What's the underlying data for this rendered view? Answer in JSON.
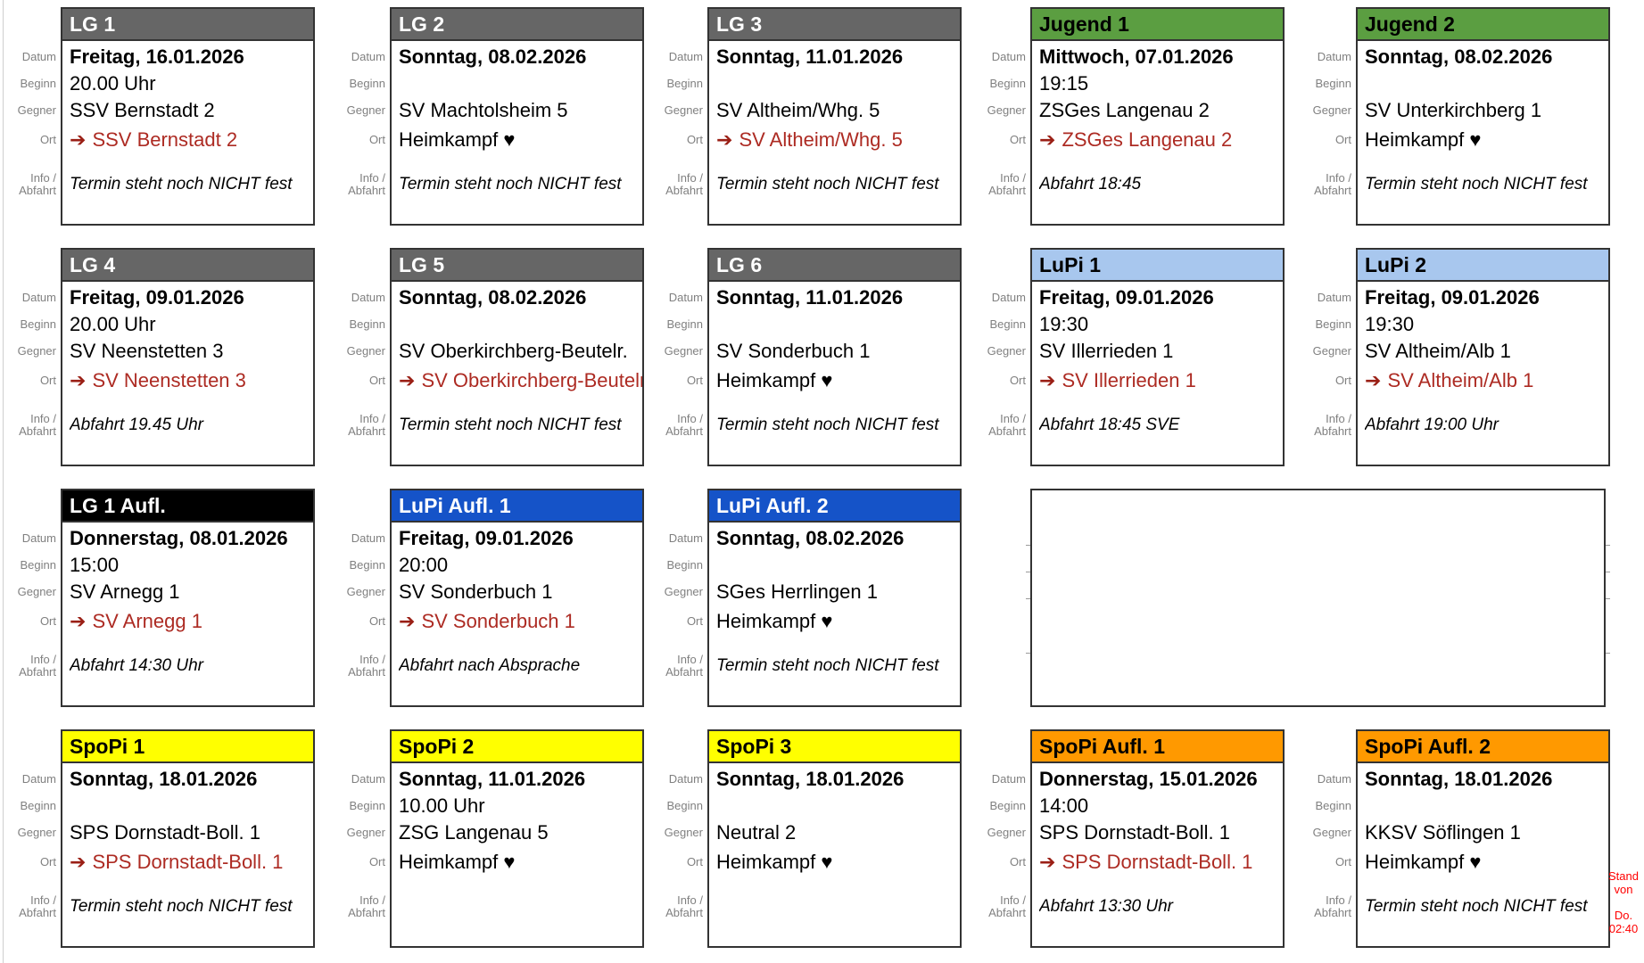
{
  "labels": {
    "datum": "Datum",
    "beginn": "Beginn",
    "gegner": "Gegner",
    "ort": "Ort",
    "info_line1": "Info /",
    "info_line2": "Abfahrt"
  },
  "icons": {
    "away_arrow": "➔",
    "home_heart": "♥"
  },
  "colors": {
    "lg_gray": "#666666",
    "jugend_green": "#5B9E41",
    "lupi_lightblue": "#A8C7EE",
    "lg_aufl_black": "#000000",
    "lupi_aufl_blue": "#1553C8",
    "spopi_yellow": "#FFFF00",
    "spopi_aufl_orange": "#FF9900",
    "away_text_red": "#AD2B23",
    "arrow_red": "#9A1F15",
    "label_gray": "#808080",
    "stand_note_red": "#FF0000"
  },
  "stand_note": {
    "line1": "Stand von",
    "line2": "Do. 02:40"
  },
  "cards": [
    {
      "row": 0,
      "col": 0,
      "title": "LG 1",
      "header_bg": "#666666",
      "header_fg": "#FFFFFF",
      "datum": "Freitag, 16.01.2026",
      "beginn": "20.00 Uhr",
      "gegner": "SSV Bernstadt 2",
      "ort": {
        "type": "away",
        "text": "SSV Bernstadt 2"
      },
      "info": "Termin steht noch NICHT fest"
    },
    {
      "row": 0,
      "col": 1,
      "title": "LG 2",
      "header_bg": "#666666",
      "header_fg": "#FFFFFF",
      "datum": "Sonntag, 08.02.2026",
      "beginn": "",
      "gegner": "SV Machtolsheim 5",
      "ort": {
        "type": "home",
        "text": "Heimkampf ♥"
      },
      "info": "Termin steht noch NICHT fest"
    },
    {
      "row": 0,
      "col": 2,
      "title": "LG 3",
      "header_bg": "#666666",
      "header_fg": "#FFFFFF",
      "datum": "Sonntag, 11.01.2026",
      "beginn": "",
      "gegner": "SV Altheim/Whg. 5",
      "ort": {
        "type": "away",
        "text": "SV Altheim/Whg. 5"
      },
      "info": "Termin steht noch NICHT fest"
    },
    {
      "row": 0,
      "col": 3,
      "title": "Jugend 1",
      "header_bg": "#5B9E41",
      "header_fg": "#000000",
      "datum": "Mittwoch, 07.01.2026",
      "beginn": "19:15",
      "gegner": "ZSGes Langenau 2",
      "ort": {
        "type": "away",
        "text": "ZSGes Langenau 2"
      },
      "info": "Abfahrt 18:45"
    },
    {
      "row": 0,
      "col": 4,
      "title": "Jugend 2",
      "header_bg": "#5B9E41",
      "header_fg": "#000000",
      "datum": "Sonntag, 08.02.2026",
      "beginn": "",
      "gegner": "SV Unterkirchberg 1",
      "ort": {
        "type": "home",
        "text": "Heimkampf ♥"
      },
      "info": "Termin steht noch NICHT fest"
    },
    {
      "row": 1,
      "col": 0,
      "title": "LG 4",
      "header_bg": "#666666",
      "header_fg": "#FFFFFF",
      "datum": "Freitag, 09.01.2026",
      "beginn": "20.00 Uhr",
      "gegner": "SV Neenstetten 3",
      "ort": {
        "type": "away",
        "text": "SV Neenstetten 3"
      },
      "info": "Abfahrt 19.45 Uhr"
    },
    {
      "row": 1,
      "col": 1,
      "title": "LG 5",
      "header_bg": "#666666",
      "header_fg": "#FFFFFF",
      "datum": "Sonntag, 08.02.2026",
      "beginn": "",
      "gegner": "SV Oberkirchberg-Beutelr.",
      "ort": {
        "type": "away",
        "text": "SV Oberkirchberg-Beutelr."
      },
      "info": "Termin steht noch NICHT fest"
    },
    {
      "row": 1,
      "col": 2,
      "title": "LG 6",
      "header_bg": "#666666",
      "header_fg": "#FFFFFF",
      "datum": "Sonntag, 11.01.2026",
      "beginn": "",
      "gegner": "SV Sonderbuch 1",
      "ort": {
        "type": "home",
        "text": "Heimkampf ♥"
      },
      "info": "Termin steht noch NICHT fest"
    },
    {
      "row": 1,
      "col": 3,
      "title": "LuPi 1",
      "header_bg": "#A8C7EE",
      "header_fg": "#000000",
      "datum": "Freitag, 09.01.2026",
      "beginn": "19:30",
      "gegner": "SV Illerrieden 1",
      "ort": {
        "type": "away",
        "text": "SV Illerrieden 1"
      },
      "info": "Abfahrt 18:45 SVE"
    },
    {
      "row": 1,
      "col": 4,
      "title": "LuPi 2",
      "header_bg": "#A8C7EE",
      "header_fg": "#000000",
      "datum": "Freitag, 09.01.2026",
      "beginn": "19:30",
      "gegner": "SV Altheim/Alb 1",
      "ort": {
        "type": "away",
        "text": "SV Altheim/Alb 1"
      },
      "info": "Abfahrt 19:00 Uhr"
    },
    {
      "row": 2,
      "col": 0,
      "title": "LG 1 Aufl.",
      "header_bg": "#000000",
      "header_fg": "#FFFFFF",
      "datum": "Donnerstag, 08.01.2026",
      "beginn": "15:00",
      "gegner": "SV Arnegg 1",
      "ort": {
        "type": "away",
        "text": "SV Arnegg 1"
      },
      "info": "Abfahrt 14:30 Uhr"
    },
    {
      "row": 2,
      "col": 1,
      "title": "LuPi Aufl. 1",
      "header_bg": "#1553C8",
      "header_fg": "#FFFFFF",
      "datum": "Freitag, 09.01.2026",
      "beginn": "20:00",
      "gegner": "SV Sonderbuch 1",
      "ort": {
        "type": "away",
        "text": "SV Sonderbuch 1"
      },
      "info": "Abfahrt nach Absprache"
    },
    {
      "row": 2,
      "col": 2,
      "title": "LuPi Aufl. 2",
      "header_bg": "#1553C8",
      "header_fg": "#FFFFFF",
      "datum": "Sonntag, 08.02.2026",
      "beginn": "",
      "gegner": "SGes Herrlingen 1",
      "ort": {
        "type": "home",
        "text": "Heimkampf ♥"
      },
      "info": "Termin steht noch NICHT fest"
    },
    {
      "row": 2,
      "col": 3,
      "type": "empty"
    },
    {
      "row": 3,
      "col": 0,
      "title": "SpoPi 1",
      "header_bg": "#FFFF00",
      "header_fg": "#000000",
      "datum": "Sonntag, 18.01.2026",
      "beginn": "",
      "gegner": "SPS Dornstadt-Boll. 1",
      "ort": {
        "type": "away",
        "text": "SPS Dornstadt-Boll. 1"
      },
      "info": "Termin steht noch NICHT fest"
    },
    {
      "row": 3,
      "col": 1,
      "title": "SpoPi 2",
      "header_bg": "#FFFF00",
      "header_fg": "#000000",
      "datum": "Sonntag, 11.01.2026",
      "beginn": "10.00 Uhr",
      "gegner": "ZSG Langenau 5",
      "ort": {
        "type": "home",
        "text": "Heimkampf ♥"
      },
      "info": ""
    },
    {
      "row": 3,
      "col": 2,
      "title": "SpoPi 3",
      "header_bg": "#FFFF00",
      "header_fg": "#000000",
      "datum": "Sonntag, 18.01.2026",
      "beginn": "",
      "gegner": "Neutral 2",
      "ort": {
        "type": "home",
        "text": "Heimkampf ♥"
      },
      "info": ""
    },
    {
      "row": 3,
      "col": 3,
      "title": "SpoPi Aufl. 1",
      "header_bg": "#FF9900",
      "header_fg": "#000000",
      "datum": "Donnerstag, 15.01.2026",
      "beginn": "14:00",
      "gegner": "SPS Dornstadt-Boll. 1",
      "ort": {
        "type": "away",
        "text": "SPS Dornstadt-Boll. 1"
      },
      "info": "Abfahrt 13:30 Uhr"
    },
    {
      "row": 3,
      "col": 4,
      "title": "SpoPi Aufl. 2",
      "header_bg": "#FF9900",
      "header_fg": "#000000",
      "datum": "Sonntag, 18.01.2026",
      "beginn": "",
      "gegner": "KKSV Söflingen 1",
      "ort": {
        "type": "home",
        "text": "Heimkampf ♥"
      },
      "info": "Termin steht noch NICHT fest"
    }
  ]
}
